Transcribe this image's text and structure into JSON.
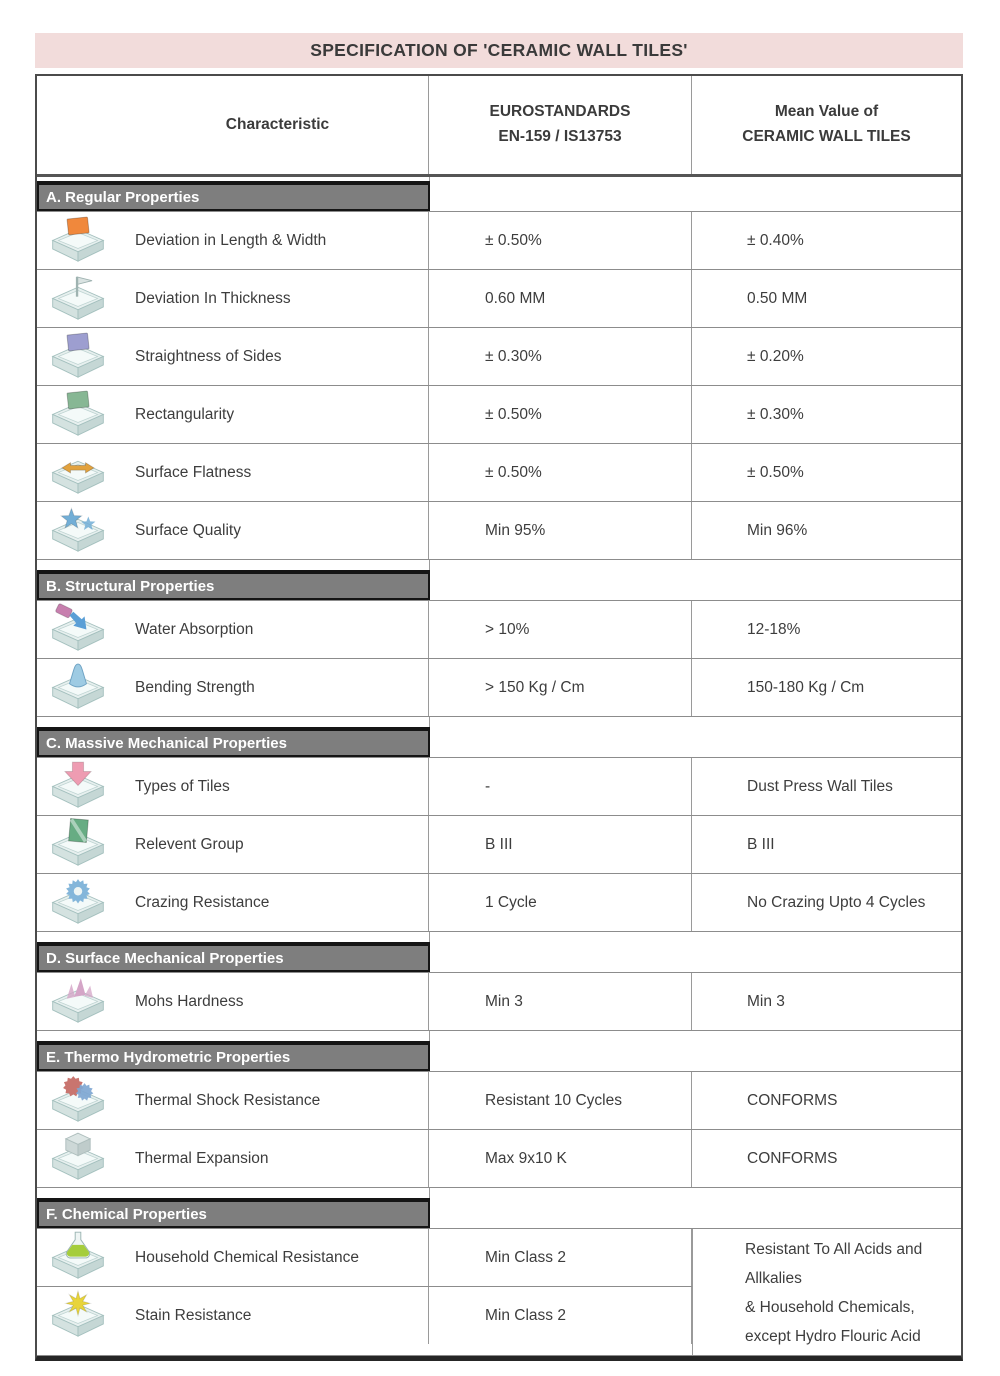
{
  "title": "SPECIFICATION OF 'CERAMIC WALL TILES'",
  "colors": {
    "title_bg": "#f2dcdb",
    "section_bar": "#7e7e7e",
    "section_bar_text": "#ffffff"
  },
  "table": {
    "header": {
      "characteristic": "Characteristic",
      "standard_line1": "EUROSTANDARDS",
      "standard_line2": "EN-159 / IS13753",
      "mean_line1": "Mean Value of",
      "mean_line2": "CERAMIC WALL TILES"
    },
    "sections": [
      {
        "label": "A. Regular Properties",
        "rows": [
          {
            "characteristic": "Deviation in Length & Width",
            "standard": "± 0.50%",
            "mean": "± 0.40%",
            "icon": {
              "name": "deviation-length-width-tile-icon",
              "glyph": "square",
              "color": "#f0883c"
            }
          },
          {
            "characteristic": "Deviation In Thickness",
            "standard": "0.60 MM",
            "mean": "0.50 MM",
            "icon": {
              "name": "deviation-thickness-tile-icon",
              "glyph": "flag",
              "color": "#dae3e2"
            }
          },
          {
            "characteristic": "Straightness of Sides",
            "standard": "± 0.30%",
            "mean": "± 0.20%",
            "icon": {
              "name": "straightness-of-sides-tile-icon",
              "glyph": "square",
              "color": "#9d9ed0"
            }
          },
          {
            "characteristic": "Rectangularity",
            "standard": "± 0.50%",
            "mean": "± 0.30%",
            "icon": {
              "name": "rectangularity-tile-icon",
              "glyph": "square",
              "color": "#87b794"
            }
          },
          {
            "characteristic": "Surface Flatness",
            "standard": "± 0.50%",
            "mean": "± 0.50%",
            "icon": {
              "name": "surface-flatness-tile-icon",
              "glyph": "dumbbell",
              "color": "#e2a23e"
            }
          },
          {
            "characteristic": "Surface Quality",
            "standard": "Min 95%",
            "mean": "Min 96%",
            "icon": {
              "name": "surface-quality-tile-icon",
              "glyph": "stars",
              "color": "#72aed6"
            }
          }
        ]
      },
      {
        "label": "B. Structural Properties",
        "rows": [
          {
            "characteristic": "Water Absorption",
            "standard": "> 10%",
            "mean": "12-18%",
            "icon": {
              "name": "water-absorption-tile-icon",
              "glyph": "pour",
              "color": "#5b9fd6"
            }
          },
          {
            "characteristic": "Bending Strength",
            "standard": "> 150 Kg / Cm",
            "mean": "150-180 Kg / Cm",
            "icon": {
              "name": "bending-strength-tile-icon",
              "glyph": "cone",
              "color": "#9ecbe3"
            }
          }
        ]
      },
      {
        "label": "C. Massive Mechanical Properties",
        "rows": [
          {
            "characteristic": "Types of Tiles",
            "standard": "-",
            "mean": "Dust Press Wall Tiles",
            "icon": {
              "name": "types-of-tiles-tile-icon",
              "glyph": "arrowDown",
              "color": "#ee9cb2"
            }
          },
          {
            "characteristic": "Relevent Group",
            "standard": "B III",
            "mean": "B III",
            "icon": {
              "name": "relevent-group-tile-icon",
              "glyph": "panel",
              "color": "#67ac83"
            }
          },
          {
            "characteristic": "Crazing Resistance",
            "standard": "1 Cycle",
            "mean": "No Crazing Upto 4 Cycles",
            "icon": {
              "name": "crazing-resistance-tile-icon",
              "glyph": "gear",
              "color": "#84b6da"
            }
          }
        ]
      },
      {
        "label": "D. Surface Mechanical Properties",
        "rows": [
          {
            "characteristic": "Mohs Hardness",
            "standard": "Min 3",
            "mean": "Min 3",
            "icon": {
              "name": "mohs-hardness-tile-icon",
              "glyph": "crystals",
              "color": "#d4a5c7"
            }
          }
        ]
      },
      {
        "label": "E. Thermo Hydrometric Properties",
        "rows": [
          {
            "characteristic": "Thermal Shock Resistance",
            "standard": "Resistant 10 Cycles",
            "mean": "CONFORMS",
            "icon": {
              "name": "thermal-shock-resistance-tile-icon",
              "glyph": "gears2",
              "color": "#c9756f"
            }
          },
          {
            "characteristic": "Thermal Expansion",
            "standard": "Max 9x10 K",
            "mean": "CONFORMS",
            "icon": {
              "name": "thermal-expansion-tile-icon",
              "glyph": "cube",
              "color": "#dde6e5"
            }
          }
        ]
      },
      {
        "label": "F. Chemical Properties",
        "merged_mean": {
          "lines": [
            "Resistant To All Acids and Allkalies",
            "& Household Chemicals, except Hydro Flouric Acid"
          ]
        },
        "rows": [
          {
            "characteristic": "Household Chemical Resistance",
            "standard": "Min Class 2",
            "icon": {
              "name": "household-chemical-resistance-tile-icon",
              "glyph": "flask",
              "color": "#a5cd3c"
            }
          },
          {
            "characteristic": "Stain Resistance",
            "standard": "Min Class 2",
            "icon": {
              "name": "stain-resistance-tile-icon",
              "glyph": "splash",
              "color": "#e8d43a"
            }
          }
        ]
      }
    ]
  }
}
